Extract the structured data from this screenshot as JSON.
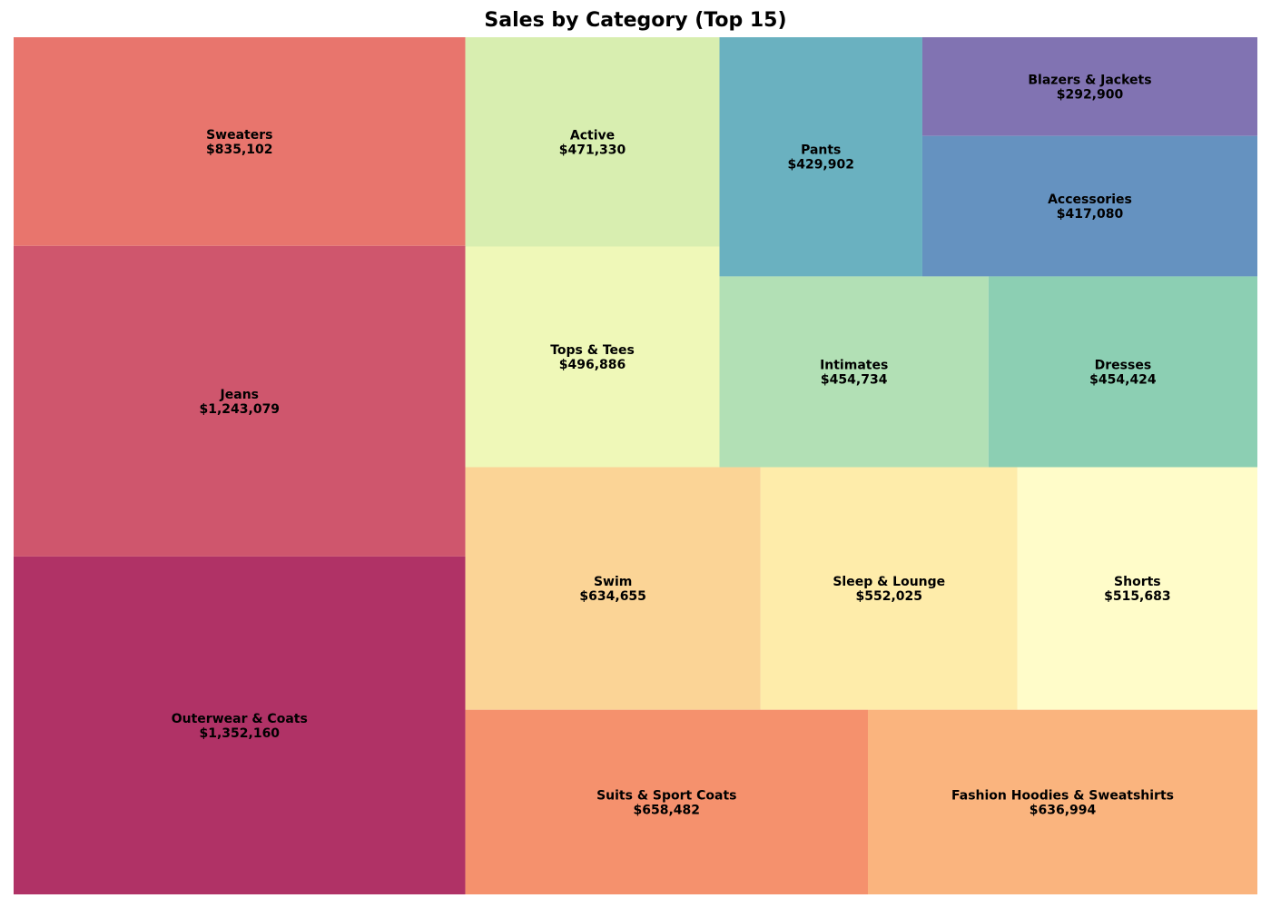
{
  "chart_data": {
    "type": "treemap",
    "title": "Sales by Category (Top 15)",
    "currency": "$",
    "items": [
      {
        "id": "outerwear-coats",
        "label": "Outerwear & Coats",
        "value": 1352160,
        "color": "#b03266"
      },
      {
        "id": "jeans",
        "label": "Jeans",
        "value": 1243079,
        "color": "#cf566d"
      },
      {
        "id": "sweaters",
        "label": "Sweaters",
        "value": 835102,
        "color": "#e8756d"
      },
      {
        "id": "suits-sport-coats",
        "label": "Suits & Sport Coats",
        "value": 658482,
        "color": "#f5916d"
      },
      {
        "id": "fashion-hoodies-sweatshirts",
        "label": "Fashion Hoodies & Sweatshirts",
        "value": 636994,
        "color": "#fab47e"
      },
      {
        "id": "swim",
        "label": "Swim",
        "value": 634655,
        "color": "#fbd496"
      },
      {
        "id": "sleep-lounge",
        "label": "Sleep & Lounge",
        "value": 552025,
        "color": "#feecaa"
      },
      {
        "id": "shorts",
        "label": "Shorts",
        "value": 515683,
        "color": "#fffcc9"
      },
      {
        "id": "tops-tees",
        "label": "Tops & Tees",
        "value": 496886,
        "color": "#eff8b8"
      },
      {
        "id": "active",
        "label": "Active",
        "value": 471330,
        "color": "#d8eeb0"
      },
      {
        "id": "intimates",
        "label": "Intimates",
        "value": 454734,
        "color": "#b2e0b5"
      },
      {
        "id": "dresses",
        "label": "Dresses",
        "value": 454424,
        "color": "#8ccfb3"
      },
      {
        "id": "pants",
        "label": "Pants",
        "value": 429902,
        "color": "#6ab1c0"
      },
      {
        "id": "accessories",
        "label": "Accessories",
        "value": 417080,
        "color": "#6592c0"
      },
      {
        "id": "blazers-jackets",
        "label": "Blazers & Jackets",
        "value": 292900,
        "color": "#8173b2"
      }
    ]
  }
}
